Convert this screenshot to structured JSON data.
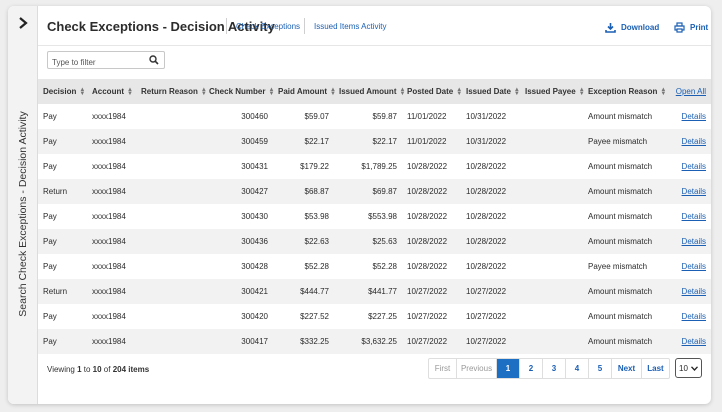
{
  "sidebar": {
    "label": "Search Check Exceptions - Decision Activity"
  },
  "header": {
    "title": "Check Exceptions - Decision Activity",
    "links": [
      "Check Exceptions",
      "Issued Items Activity"
    ],
    "download_label": "Download",
    "print_label": "Print"
  },
  "filter": {
    "placeholder": "Type to filter",
    "value": ""
  },
  "table": {
    "columns": [
      "Decision",
      "Account",
      "Return Reason",
      "Check Number",
      "Paid Amount",
      "Issued Amount",
      "Posted Date",
      "Issued Date",
      "Issued Payee",
      "Exception Reason"
    ],
    "open_all_label": "Open All",
    "details_label": "Details",
    "rows": [
      [
        "Pay",
        "xxxx1984",
        "",
        "300460",
        "$59.07",
        "$59.87",
        "11/01/2022",
        "10/31/2022",
        "",
        "Amount mismatch"
      ],
      [
        "Pay",
        "xxxx1984",
        "",
        "300459",
        "$22.17",
        "$22.17",
        "11/01/2022",
        "10/31/2022",
        "",
        "Payee mismatch"
      ],
      [
        "Pay",
        "xxxx1984",
        "",
        "300431",
        "$179.22",
        "$1,789.25",
        "10/28/2022",
        "10/28/2022",
        "",
        "Amount mismatch"
      ],
      [
        "Return",
        "xxxx1984",
        "",
        "300427",
        "$68.87",
        "$69.87",
        "10/28/2022",
        "10/28/2022",
        "",
        "Amount mismatch"
      ],
      [
        "Pay",
        "xxxx1984",
        "",
        "300430",
        "$53.98",
        "$553.98",
        "10/28/2022",
        "10/28/2022",
        "",
        "Amount mismatch"
      ],
      [
        "Pay",
        "xxxx1984",
        "",
        "300436",
        "$22.63",
        "$25.63",
        "10/28/2022",
        "10/28/2022",
        "",
        "Amount mismatch"
      ],
      [
        "Pay",
        "xxxx1984",
        "",
        "300428",
        "$52.28",
        "$52.28",
        "10/28/2022",
        "10/28/2022",
        "",
        "Payee mismatch"
      ],
      [
        "Return",
        "xxxx1984",
        "",
        "300421",
        "$444.77",
        "$441.77",
        "10/27/2022",
        "10/27/2022",
        "",
        "Amount mismatch"
      ],
      [
        "Pay",
        "xxxx1984",
        "",
        "300420",
        "$227.52",
        "$227.25",
        "10/27/2022",
        "10/27/2022",
        "",
        "Amount mismatch"
      ],
      [
        "Pay",
        "xxxx1984",
        "",
        "300417",
        "$332.25",
        "$3,632.25",
        "10/27/2022",
        "10/27/2022",
        "",
        "Amount mismatch"
      ]
    ]
  },
  "pagination": {
    "viewing_prefix": "Viewing ",
    "range_start": "1",
    "range_sep": " to ",
    "range_end": "10",
    "of_text": " of ",
    "total": "204 items",
    "first": "First",
    "previous": "Previous",
    "pages": [
      "1",
      "2",
      "3",
      "4",
      "5"
    ],
    "current_page": "1",
    "next": "Next",
    "last": "Last",
    "page_size": "10"
  },
  "colors": {
    "accent": "#1d6fc4",
    "link": "#1a5fb4",
    "header_bg": "#e7e7e7",
    "alt_row": "#f2f2f2"
  }
}
